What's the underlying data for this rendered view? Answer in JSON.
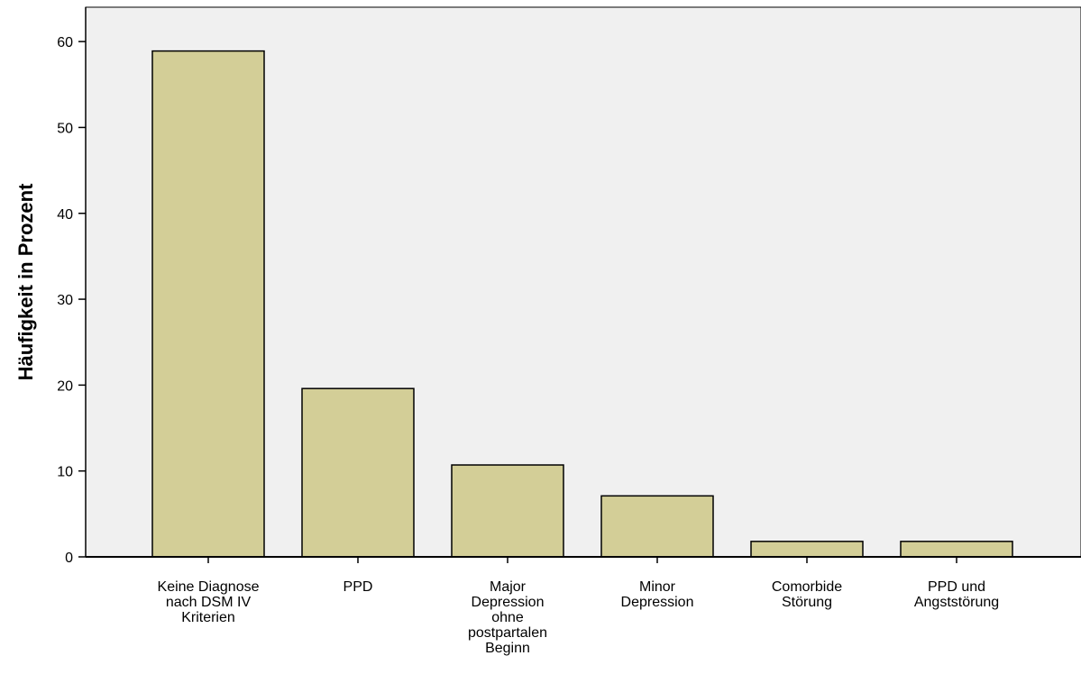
{
  "chart_data": {
    "type": "bar",
    "title": "",
    "xlabel": "",
    "ylabel": "Häufigkeit in Prozent",
    "ylim": [
      0,
      64
    ],
    "yticks": [
      0,
      10,
      20,
      30,
      40,
      50,
      60
    ],
    "grid": false,
    "categories": [
      [
        "Keine Diagnose",
        "nach DSM IV",
        "Kriterien"
      ],
      [
        "PPD"
      ],
      [
        "Major",
        "Depression",
        "ohne",
        "postpartalen",
        "Beginn"
      ],
      [
        "Minor",
        "Depression"
      ],
      [
        "Comorbide",
        "Störung"
      ],
      [
        "PPD und",
        "Angststörung"
      ]
    ],
    "values": [
      58.9,
      19.6,
      10.7,
      7.1,
      1.8,
      1.8
    ],
    "colors": {
      "plot_background": "#f0f0f0",
      "bar_fill": "#d3ce97",
      "bar_stroke": "#000000"
    }
  }
}
